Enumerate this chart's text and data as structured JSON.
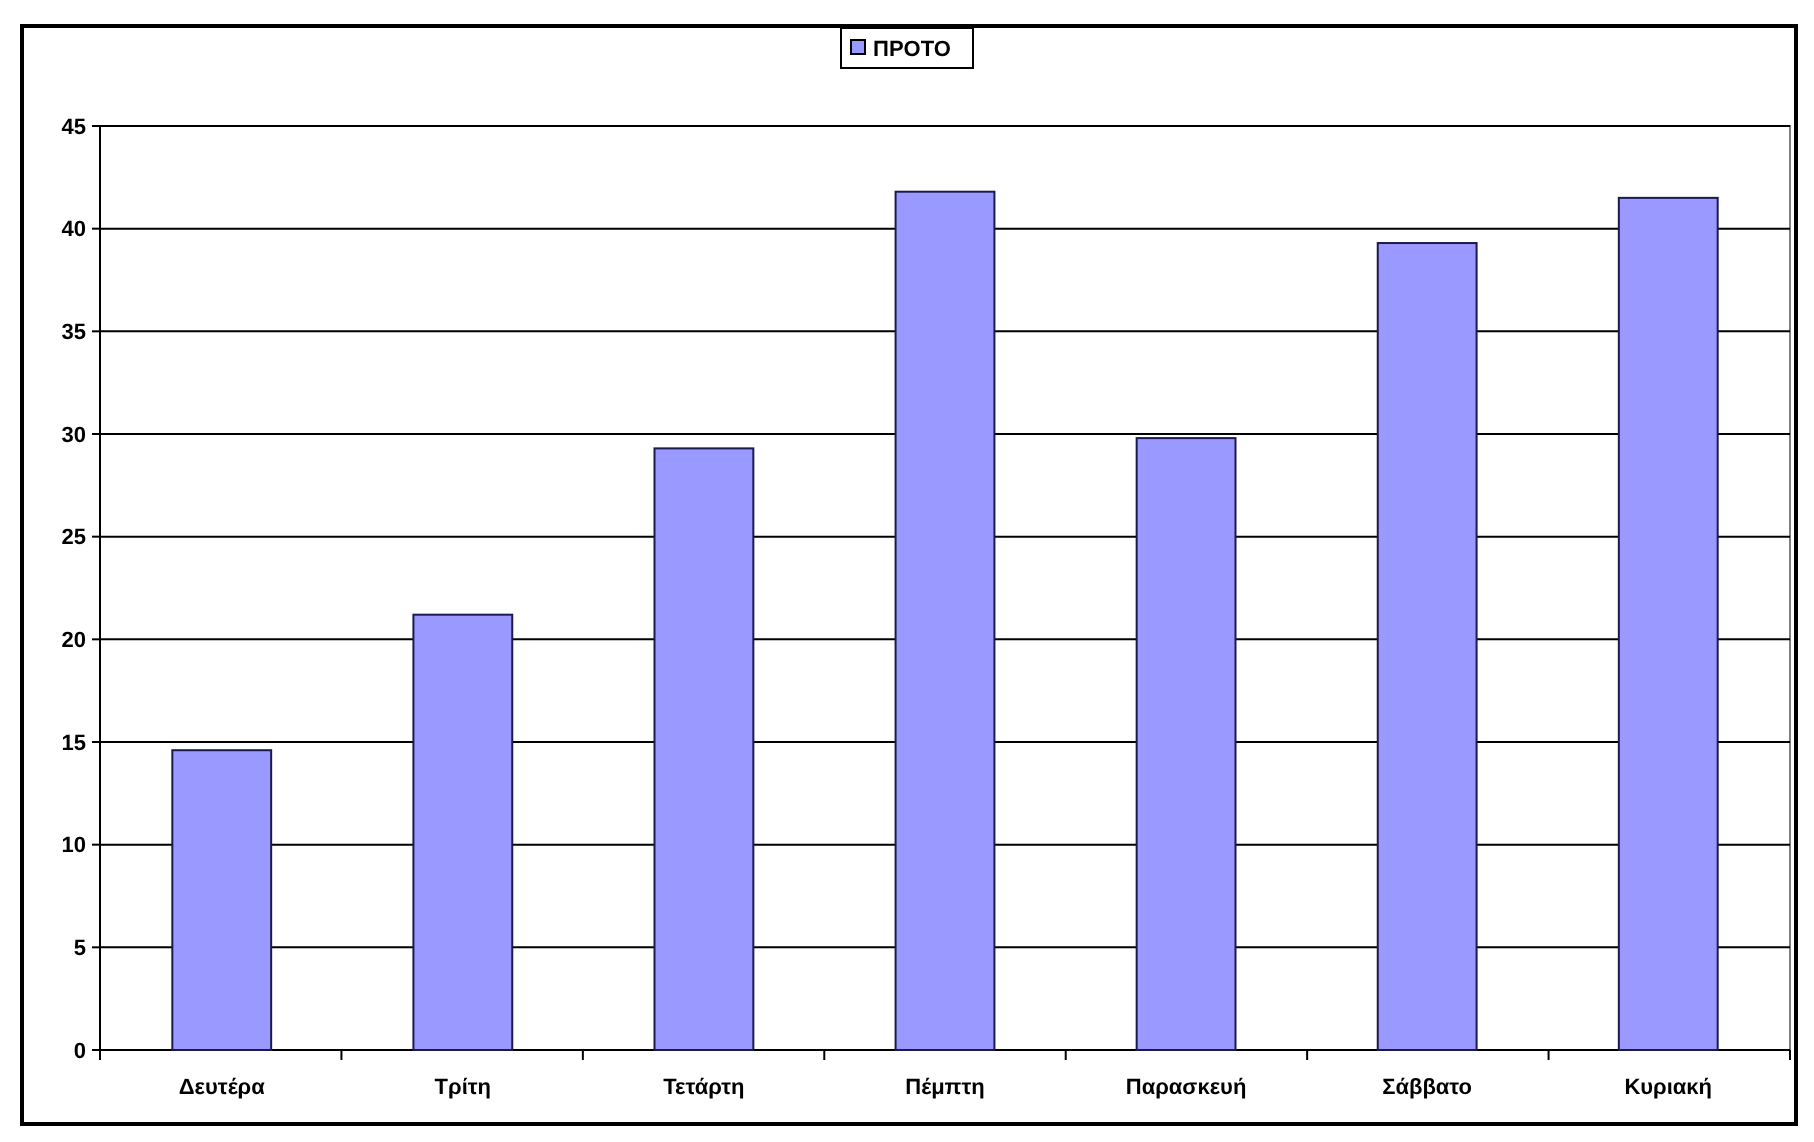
{
  "chart_data": {
    "type": "bar",
    "categories": [
      "Δευτέρα",
      "Τρίτη",
      "Τετάρτη",
      "Πέμπτη",
      "Παρασκευή",
      "Σάββατο",
      "Κυριακή"
    ],
    "series": [
      {
        "name": "ΠΡΟΤΟ",
        "color": "#9999ff",
        "values": [
          14.6,
          21.2,
          29.3,
          41.8,
          29.8,
          39.3,
          41.5
        ]
      }
    ],
    "ylim": [
      0,
      45
    ],
    "yticks": [
      0,
      5,
      10,
      15,
      20,
      25,
      30,
      35,
      40,
      45
    ],
    "grid": "y",
    "legend": "top"
  }
}
